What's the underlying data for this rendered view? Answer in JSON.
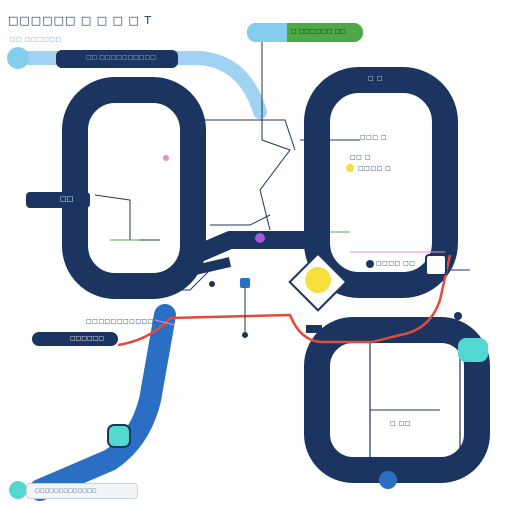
{
  "header": {
    "title_glyphs": "□□□□□□ □ □ □ □ T",
    "sub_glyphs": "□□ □□□□□□"
  },
  "pills": {
    "top_left_bar": "□□ □□□□□□□□□□",
    "top_right_tag": "□ □□□□□□ □□",
    "mid_left_tag": "□□",
    "lower_left_bar": "□□□□□□",
    "bottom_bar": "□□□□□□□□□□□□□"
  },
  "labels": {
    "left_arch_top": "□ □ □ □",
    "right_arch_top": "□ □",
    "mid_right_a": "□□□ □",
    "mid_right_b": "□□ □",
    "mid_right_c": "□□□□ □",
    "center_right": "□□□□ □□",
    "lower_left_a": "□ □□□",
    "lower_left_b": "□□□□□□□□□□□",
    "lower_right_a": "□□ □ □□",
    "bottom_right": "□ □□"
  },
  "colors": {
    "navy": "#1b3560",
    "blue": "#2a6fc4",
    "light_blue": "#9fd3f1",
    "red": "#e34a3b",
    "teal": "#53d8cf",
    "green": "#4fa848",
    "yellow": "#f4df3c",
    "pink": "#e78fd0"
  }
}
